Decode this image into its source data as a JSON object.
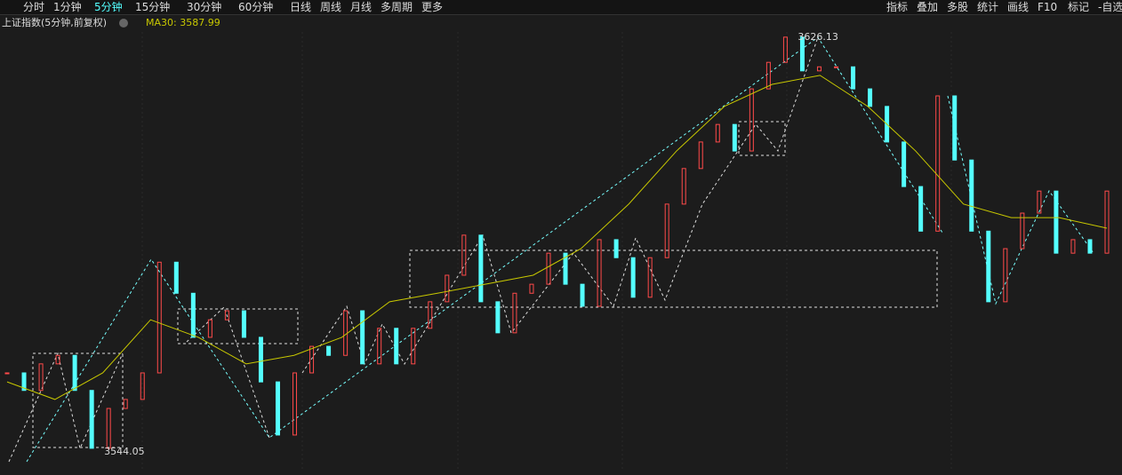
{
  "toolbar": {
    "left": [
      "分时",
      "1分钟",
      "5分钟",
      "15分钟",
      "30分钟",
      "60分钟",
      "日线",
      "周线",
      "月线",
      "多周期",
      "更多"
    ],
    "active": "5分钟",
    "right": [
      "指标",
      "叠加",
      "多股",
      "统计",
      "画线",
      "F10",
      "标记",
      "-自选"
    ]
  },
  "chart_data": {
    "type": "candlestick",
    "title": "上证指数(5分钟,前复权)",
    "ma_label": "MA30: 3587.99",
    "high_label": "3626.13",
    "low_label": "3544.05",
    "ylim": [
      3539.6,
      3630.0
    ],
    "up_color": "#ff4a4a",
    "down_color": "#54ffff",
    "ma_color": "#c8c800",
    "series": [
      {
        "name": "上证指数",
        "values": [
          3559.1,
          3555.6,
          3560.9,
          3562.6,
          3555.6,
          3544.05,
          3552.0,
          3553.8,
          3559.1,
          3581.2,
          3575.0,
          3566.2,
          3569.7,
          3571.5,
          3566.2,
          3557.3,
          3546.7,
          3559.1,
          3564.4,
          3562.6,
          3571.5,
          3560.9,
          3568.0,
          3560.9,
          3568.0,
          3573.3,
          3578.6,
          3586.6,
          3573.3,
          3567.1,
          3575.0,
          3576.8,
          3583.0,
          3576.8,
          3572.4,
          3585.7,
          3582.1,
          3574.2,
          3582.1,
          3592.8,
          3599.9,
          3605.2,
          3608.7,
          3603.4,
          3615.8,
          3621.1,
          3626.13,
          3619.4,
          3620.2,
          3620.2,
          3615.8,
          3612.3,
          3605.2,
          3596.3,
          3587.4,
          3614.4,
          3601.6,
          3587.4,
          3573.3,
          3583.9,
          3591.0,
          3595.4,
          3583.0,
          3585.7,
          3583.0,
          3595.4
        ]
      },
      {
        "name": "MA30",
        "values": [
          3557.3,
          3553.8,
          3559.1,
          3569.7,
          3566.2,
          3560.9,
          3562.6,
          3566.2,
          3573.3,
          3575.0,
          3576.8,
          3578.6,
          3583.9,
          3592.8,
          3603.4,
          3612.3,
          3616.7,
          3618.5,
          3612.3,
          3603.4,
          3592.8,
          3590.1,
          3590.1,
          3587.99
        ]
      }
    ]
  }
}
